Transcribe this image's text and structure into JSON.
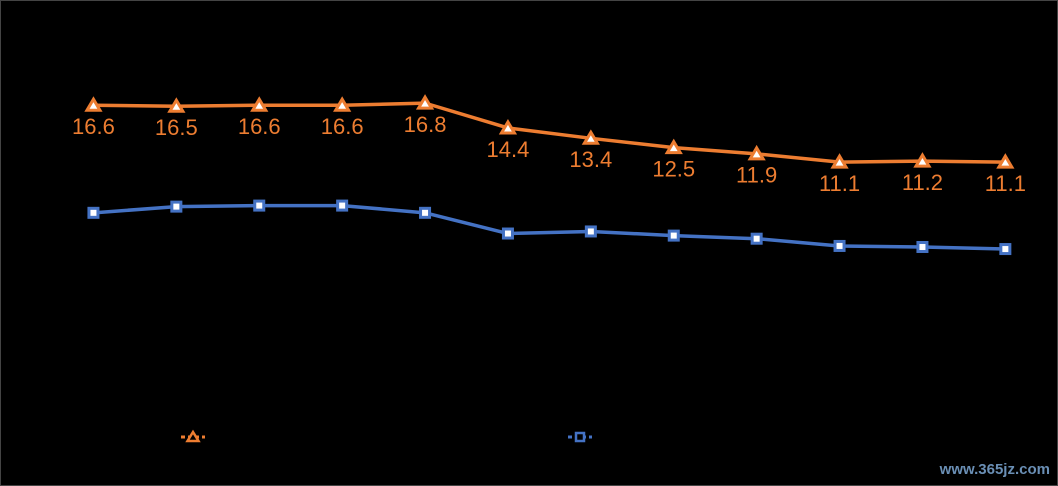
{
  "chart_data": {
    "type": "line",
    "categories": [
      null,
      null,
      null,
      null,
      null,
      null,
      null,
      null,
      null,
      null,
      null,
      null
    ],
    "series": [
      {
        "color": "#ed7d31",
        "marker": "triangle",
        "values": [
          16.6,
          16.5,
          16.6,
          16.6,
          16.8,
          14.4,
          13.4,
          12.5,
          11.9,
          11.1,
          11.2,
          11.1
        ],
        "value_labels": [
          "16.6",
          "16.5",
          "16.6",
          "16.6",
          "16.8",
          "14.4",
          "13.4",
          "12.5",
          "11.9",
          "11.1",
          "11.2",
          "11.1"
        ]
      },
      {
        "color": "#4472c4",
        "marker": "square",
        "values": [
          6.2,
          6.8,
          6.9,
          6.9,
          6.2,
          4.2,
          4.4,
          4.0,
          3.7,
          3.0,
          2.9,
          2.7
        ]
      }
    ],
    "ylim": [
      0,
      20
    ],
    "watermark": "www.365jz.com"
  }
}
